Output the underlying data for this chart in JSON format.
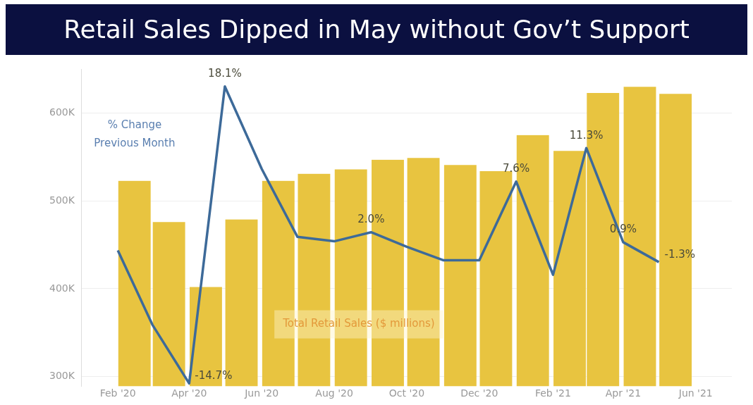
{
  "chart_data": {
    "type": "bar",
    "title": "Retail Sales Dipped in May without Gov’t Support",
    "x": [
      "2020-02",
      "2020-03",
      "2020-04",
      "2020-05",
      "2020-06",
      "2020-07",
      "2020-08",
      "2020-09",
      "2020-10",
      "2020-11",
      "2020-12",
      "2021-01",
      "2021-02",
      "2021-03",
      "2021-04",
      "2021-05"
    ],
    "series": [
      {
        "x": [
          "2020-02-15",
          "2020-03-15",
          "2020-04-15",
          "2020-05-15",
          "2020-06-15",
          "2020-07-15",
          "2020-08-15",
          "2020-09-15",
          "2020-10-15",
          "2020-11-15",
          "2020-12-15",
          "2021-01-15",
          "2021-02-15",
          "2021-03-15",
          "2021-04-15",
          "2021-05-15"
        ],
        "color": "#e8c440",
        "values": [
          523000,
          476000,
          402000,
          479000,
          523000,
          531000,
          536000,
          547000,
          549000,
          541000,
          534000,
          575000,
          557000,
          623000,
          630000,
          622000
        ]
      },
      {
        "type": "line",
        "axis": "y2",
        "color": "#3d6a99",
        "values": [
          0.0,
          -8.2,
          -14.7,
          18.1,
          9.0,
          1.5,
          1.0,
          2.0,
          0.4,
          -1.1,
          -1.1,
          7.6,
          -2.7,
          11.3,
          0.9,
          -1.3
        ],
        "value_labels": [
          null,
          null,
          "-14.7%",
          "18.1%",
          null,
          null,
          null,
          "2.0%",
          null,
          null,
          null,
          "7.6%",
          null,
          "11.3%",
          "0.9%",
          "-1.3%"
        ]
      }
    ],
    "xlim": [
      "2020-02",
      "2021-06"
    ],
    "xticks": [
      {
        "value": "2020-02",
        "label": "Feb '20"
      },
      {
        "value": "2020-04",
        "label": "Apr '20"
      },
      {
        "value": "2020-06",
        "label": "Jun '20"
      },
      {
        "value": "2020-08",
        "label": "Aug '20"
      },
      {
        "value": "2020-10",
        "label": "Oct '20"
      },
      {
        "value": "2020-12",
        "label": "Dec '20"
      },
      {
        "value": "2021-02",
        "label": "Feb '21"
      },
      {
        "value": "2021-04",
        "label": "Apr '21"
      },
      {
        "value": "2021-06",
        "label": "Jun '21"
      }
    ],
    "ylim": [
      289000,
      650000
    ],
    "yticks": [
      {
        "value": 300000,
        "label": "300K"
      },
      {
        "value": 400000,
        "label": "400K"
      },
      {
        "value": 500000,
        "label": "500K"
      },
      {
        "value": 600000,
        "label": "600K"
      }
    ],
    "grid": "y",
    "annotations": [
      "% Change Previous Month",
      "Total Retail Sales ($ millions)"
    ]
  }
}
